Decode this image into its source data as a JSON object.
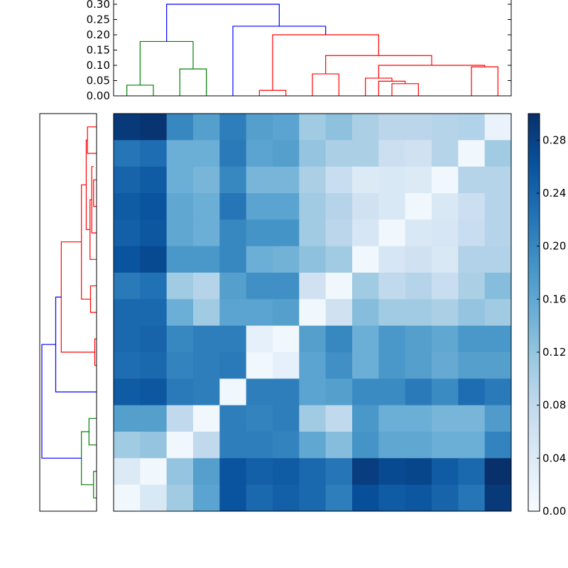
{
  "chart_data": [
    {
      "type": "dendrogram",
      "orientation": "top",
      "ylim": [
        0.0,
        0.3
      ],
      "y_ticks": [
        "0.00",
        "0.05",
        "0.10",
        "0.15",
        "0.20",
        "0.25",
        "0.30"
      ],
      "links": [
        {
          "left": 0.5,
          "right": 1.5,
          "height": 0.035,
          "left_h": 0,
          "right_h": 0,
          "color": "#008000"
        },
        {
          "left": 2.5,
          "right": 3.5,
          "height": 0.088,
          "left_h": 0,
          "right_h": 0,
          "color": "#008000"
        },
        {
          "left": 1.0,
          "right": 3.0,
          "height": 0.178,
          "left_h": 0.035,
          "right_h": 0.088,
          "color": "#008000"
        },
        {
          "left": 5.5,
          "right": 6.5,
          "height": 0.018,
          "left_h": 0,
          "right_h": 0,
          "color": "#ff0000"
        },
        {
          "left": 7.5,
          "right": 8.5,
          "height": 0.072,
          "left_h": 0,
          "right_h": 0,
          "color": "#ff0000"
        },
        {
          "left": 10.5,
          "right": 11.5,
          "height": 0.04,
          "left_h": 0,
          "right_h": 0,
          "color": "#ff0000"
        },
        {
          "left": 10.0,
          "right": 11.0,
          "height": 0.048,
          "left_h": 0,
          "right_h": 0.04,
          "color": "#ff0000"
        },
        {
          "left": 9.5,
          "right": 10.5,
          "height": 0.058,
          "left_h": 0,
          "right_h": 0.048,
          "color": "#ff0000"
        },
        {
          "left": 13.5,
          "right": 14.5,
          "height": 0.095,
          "left_h": 0,
          "right_h": 0,
          "color": "#ff0000"
        },
        {
          "left": 10.0,
          "right": 14.0,
          "height": 0.1,
          "left_h": 0.058,
          "right_h": 0.095,
          "color": "#ff0000"
        },
        {
          "left": 8.0,
          "right": 12.0,
          "height": 0.132,
          "left_h": 0.072,
          "right_h": 0.1,
          "color": "#ff0000"
        },
        {
          "left": 6.0,
          "right": 10.0,
          "height": 0.2,
          "left_h": 0.018,
          "right_h": 0.132,
          "color": "#ff0000"
        },
        {
          "left": 4.5,
          "right": 8.0,
          "height": 0.228,
          "left_h": 0,
          "right_h": 0.2,
          "color": "#0000ff"
        },
        {
          "left": 2.0,
          "right": 6.25,
          "height": 0.3,
          "left_h": 0.178,
          "right_h": 0.228,
          "color": "#0000ff"
        }
      ]
    },
    {
      "type": "dendrogram",
      "orientation": "left",
      "links": [
        {
          "a": 13.5,
          "b": 14.5,
          "height": 0.012,
          "a_h": 0,
          "b_h": 0,
          "color": "#008000"
        },
        {
          "a": 11.5,
          "b": 12.5,
          "height": 0.03,
          "a_h": 0,
          "b_h": 0,
          "color": "#008000"
        },
        {
          "a": 12.0,
          "b": 14.0,
          "height": 0.06,
          "a_h": 0.03,
          "b_h": 0.012,
          "color": "#008000"
        },
        {
          "a": 8.5,
          "b": 9.5,
          "height": 0.007,
          "a_h": 0,
          "b_h": 0,
          "color": "#ff0000"
        },
        {
          "a": 6.5,
          "b": 7.5,
          "height": 0.024,
          "a_h": 0,
          "b_h": 0,
          "color": "#ff0000"
        },
        {
          "a": 2.5,
          "b": 3.5,
          "height": 0.012,
          "a_h": 0,
          "b_h": 0,
          "color": "#ff0000"
        },
        {
          "a": 2.0,
          "b": 4.5,
          "height": 0.019,
          "a_h": 0.012,
          "b_h": 0,
          "color": "#ff0000"
        },
        {
          "a": 3.25,
          "b": 5.5,
          "height": 0.026,
          "a_h": 0.019,
          "b_h": 0,
          "color": "#ff0000"
        },
        {
          "a": 0.5,
          "b": 1.5,
          "height": 0.036,
          "a_h": 0,
          "b_h": 0,
          "color": "#ff0000"
        },
        {
          "a": 1.0,
          "b": 4.375,
          "height": 0.041,
          "a_h": 0.036,
          "b_h": 0.026,
          "color": "#ff0000"
        },
        {
          "a": 2.6875,
          "b": 7.0,
          "height": 0.06,
          "a_h": 0.041,
          "b_h": 0.024,
          "color": "#ff0000"
        },
        {
          "a": 4.84,
          "b": 9.0,
          "height": 0.14,
          "a_h": 0.06,
          "b_h": 0.007,
          "color": "#ff0000"
        },
        {
          "a": 6.92,
          "b": 10.5,
          "height": 0.162,
          "a_h": 0.14,
          "b_h": 0,
          "color": "#0000ff"
        },
        {
          "a": 8.71,
          "b": 13.0,
          "height": 0.217,
          "a_h": 0.162,
          "b_h": 0.06,
          "color": "#0000ff"
        }
      ]
    },
    {
      "type": "heatmap",
      "colormap": "Blues",
      "vmin": 0.0,
      "vmax": 0.3,
      "colorbar_ticks": [
        "0.00",
        "0.04",
        "0.08",
        "0.12",
        "0.16",
        "0.20",
        "0.24",
        "0.28"
      ],
      "rows": 15,
      "cols": 15,
      "values": [
        [
          0.29,
          0.295,
          0.2,
          0.17,
          0.21,
          0.17,
          0.165,
          0.11,
          0.125,
          0.1,
          0.085,
          0.085,
          0.09,
          0.095,
          0.02
        ],
        [
          0.22,
          0.23,
          0.15,
          0.15,
          0.215,
          0.165,
          0.17,
          0.12,
          0.1,
          0.1,
          0.065,
          0.06,
          0.09,
          0.01,
          0.11
        ],
        [
          0.24,
          0.25,
          0.15,
          0.14,
          0.2,
          0.14,
          0.14,
          0.1,
          0.07,
          0.04,
          0.045,
          0.04,
          0.01,
          0.09,
          0.09
        ],
        [
          0.25,
          0.26,
          0.16,
          0.15,
          0.22,
          0.165,
          0.165,
          0.11,
          0.09,
          0.06,
          0.045,
          0.01,
          0.045,
          0.065,
          0.09
        ],
        [
          0.245,
          0.255,
          0.16,
          0.15,
          0.2,
          0.185,
          0.185,
          0.11,
          0.085,
          0.05,
          0.01,
          0.045,
          0.05,
          0.07,
          0.09
        ],
        [
          0.26,
          0.27,
          0.18,
          0.18,
          0.2,
          0.15,
          0.145,
          0.125,
          0.11,
          0.01,
          0.05,
          0.06,
          0.045,
          0.095,
          0.095
        ],
        [
          0.215,
          0.225,
          0.11,
          0.09,
          0.17,
          0.19,
          0.19,
          0.06,
          0.01,
          0.11,
          0.08,
          0.09,
          0.07,
          0.1,
          0.13
        ],
        [
          0.235,
          0.235,
          0.15,
          0.11,
          0.165,
          0.165,
          0.17,
          0.01,
          0.06,
          0.13,
          0.11,
          0.11,
          0.1,
          0.12,
          0.11
        ],
        [
          0.235,
          0.24,
          0.2,
          0.21,
          0.21,
          0.025,
          0.01,
          0.17,
          0.2,
          0.15,
          0.18,
          0.17,
          0.16,
          0.18,
          0.18
        ],
        [
          0.23,
          0.235,
          0.205,
          0.21,
          0.215,
          0.01,
          0.025,
          0.165,
          0.19,
          0.15,
          0.18,
          0.17,
          0.155,
          0.17,
          0.17
        ],
        [
          0.25,
          0.255,
          0.215,
          0.21,
          0.01,
          0.21,
          0.21,
          0.165,
          0.17,
          0.195,
          0.195,
          0.215,
          0.195,
          0.23,
          0.215
        ],
        [
          0.17,
          0.17,
          0.08,
          0.01,
          0.21,
          0.205,
          0.21,
          0.11,
          0.08,
          0.18,
          0.15,
          0.15,
          0.14,
          0.14,
          0.175
        ],
        [
          0.11,
          0.12,
          0.01,
          0.08,
          0.21,
          0.21,
          0.205,
          0.16,
          0.13,
          0.185,
          0.16,
          0.16,
          0.15,
          0.15,
          0.205
        ],
        [
          0.04,
          0.01,
          0.12,
          0.17,
          0.26,
          0.245,
          0.25,
          0.235,
          0.22,
          0.285,
          0.27,
          0.275,
          0.25,
          0.235,
          0.3
        ],
        [
          0.01,
          0.045,
          0.11,
          0.165,
          0.26,
          0.235,
          0.245,
          0.235,
          0.21,
          0.265,
          0.25,
          0.255,
          0.24,
          0.22,
          0.29
        ]
      ]
    }
  ]
}
